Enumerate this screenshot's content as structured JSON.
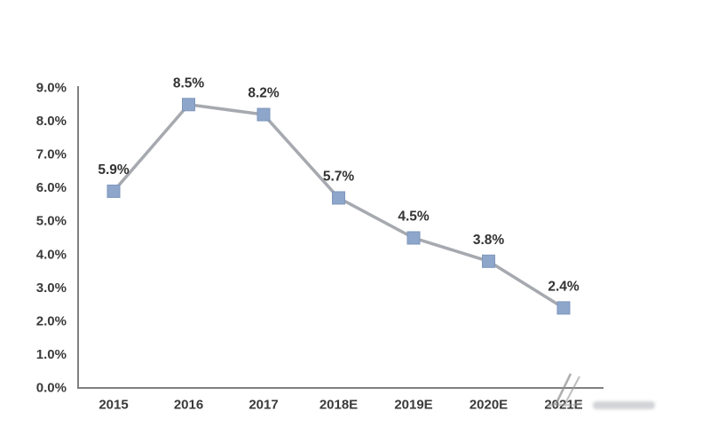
{
  "chart_data": {
    "type": "line",
    "title": "",
    "categories": [
      "2015",
      "2016",
      "2017",
      "2018E",
      "2019E",
      "2020E",
      "2021E"
    ],
    "values": [
      5.9,
      8.5,
      8.2,
      5.7,
      4.5,
      3.8,
      2.4
    ],
    "point_labels": [
      "5.9%",
      "8.5%",
      "8.2%",
      "5.7%",
      "4.5%",
      "3.8%",
      "2.4%"
    ],
    "y_tick_labels": [
      "9.0%",
      "8.0%",
      "7.0%",
      "6.0%",
      "5.0%",
      "4.0%",
      "3.0%",
      "2.0%",
      "1.0%",
      "0.0%"
    ],
    "y_tick_step": 1,
    "ylim": [
      0,
      9
    ],
    "grid": false,
    "legend": false,
    "marker_shape": "square",
    "colors": {
      "marker": "#8da6ca",
      "marker_border": "#7e97bd",
      "line": "#a6a9af",
      "axis": "#808080",
      "text": "#3a3a3a",
      "background": "#ffffff",
      "watermark": "#8f8f8f"
    }
  }
}
